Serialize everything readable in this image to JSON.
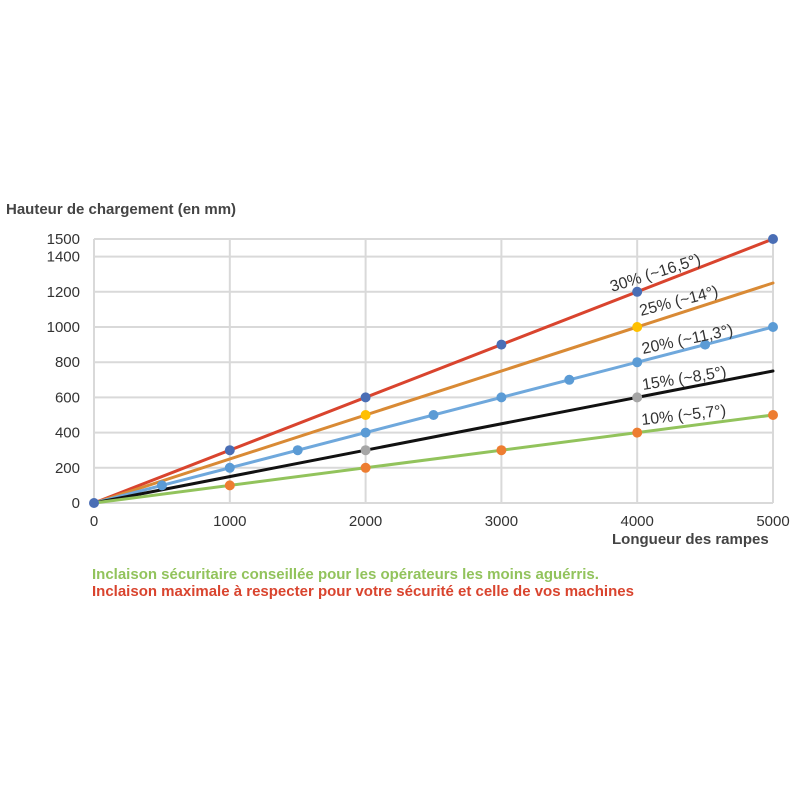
{
  "chart_data": {
    "type": "line",
    "ylabel": "Hauteur de chargement (en mm)",
    "xlabel": "Longueur des rampes",
    "xlim": [
      0,
      5000
    ],
    "ylim": [
      0,
      1500
    ],
    "x_ticks": [
      "0",
      "1000",
      "2000",
      "3000",
      "4000",
      "5000"
    ],
    "y_ticks": [
      "0",
      "200",
      "400",
      "600",
      "800",
      "1000",
      "1200",
      "1400",
      "1500"
    ],
    "grid": true,
    "series": [
      {
        "name": "30% (~16,5°)",
        "line_color": "#d9442e",
        "x": [
          0,
          5000
        ],
        "y": [
          0,
          1500
        ],
        "points": [
          {
            "x": 0,
            "y": 0
          },
          {
            "x": 1000,
            "y": 300
          },
          {
            "x": 2000,
            "y": 600
          },
          {
            "x": 3000,
            "y": 900
          },
          {
            "x": 4000,
            "y": 1200
          },
          {
            "x": 5000,
            "y": 1500
          }
        ],
        "point_color": "#4a6eb5"
      },
      {
        "name": "25% (~14°)",
        "line_color": "#d98a35",
        "x": [
          0,
          5000
        ],
        "y": [
          0,
          1250
        ],
        "points": [
          {
            "x": 2000,
            "y": 500
          },
          {
            "x": 4000,
            "y": 1000
          }
        ],
        "point_color": "#ffc000"
      },
      {
        "name": "20% (~11,3°)",
        "line_color": "#6fa8dc",
        "x": [
          0,
          5000
        ],
        "y": [
          0,
          1000
        ],
        "points": [
          {
            "x": 500,
            "y": 100
          },
          {
            "x": 1000,
            "y": 200
          },
          {
            "x": 1500,
            "y": 300
          },
          {
            "x": 2000,
            "y": 400
          },
          {
            "x": 2500,
            "y": 500
          },
          {
            "x": 3000,
            "y": 600
          },
          {
            "x": 3500,
            "y": 700
          },
          {
            "x": 4000,
            "y": 800
          },
          {
            "x": 4500,
            "y": 900
          },
          {
            "x": 5000,
            "y": 1000
          }
        ],
        "point_color": "#5b9bd5"
      },
      {
        "name": "15% (~8,5°)",
        "line_color": "#111111",
        "x": [
          0,
          5000
        ],
        "y": [
          0,
          750
        ],
        "points": [
          {
            "x": 2000,
            "y": 300
          },
          {
            "x": 4000,
            "y": 600
          }
        ],
        "point_color": "#a6a6a6"
      },
      {
        "name": "10% (~5,7°)",
        "line_color": "#92c35c",
        "x": [
          0,
          5000
        ],
        "y": [
          0,
          500
        ],
        "points": [
          {
            "x": 1000,
            "y": 100
          },
          {
            "x": 2000,
            "y": 200
          },
          {
            "x": 3000,
            "y": 300
          },
          {
            "x": 4000,
            "y": 400
          },
          {
            "x": 5000,
            "y": 500
          }
        ],
        "point_color": "#ed7d31"
      }
    ]
  },
  "notes": {
    "safe": "Inclaison sécuritaire conseillée pour les opérateurs les moins aguérris.",
    "safe_color": "#92c35c",
    "max": "Inclaison maximale à respecter pour votre sécurité et celle de vos machines",
    "max_color": "#d9442e"
  }
}
